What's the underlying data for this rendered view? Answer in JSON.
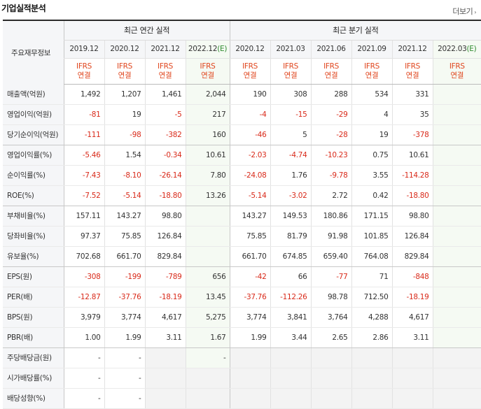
{
  "header": {
    "title": "기업실적분석",
    "more_label": "더보기",
    "more_arrow": "›"
  },
  "table": {
    "corner_label": "주요재무정보",
    "groups": {
      "annual": "최근 연간 실적",
      "quarterly": "최근 분기 실적"
    },
    "annual_periods": [
      "2019.12",
      "2020.12",
      "2021.12",
      "2022.12"
    ],
    "annual_estimate_mark": "(E)",
    "quarterly_periods": [
      "2020.12",
      "2021.03",
      "2021.06",
      "2021.09",
      "2021.12",
      "2022.03"
    ],
    "quarterly_estimate_mark": "(E)",
    "standard_line1": "IFRS",
    "standard_line2": "연결",
    "rows": [
      {
        "label": "매출액(억원)",
        "values": [
          "1,492",
          "1,207",
          "1,461",
          "2,044",
          "190",
          "308",
          "288",
          "534",
          "331",
          ""
        ]
      },
      {
        "label": "영업이익(억원)",
        "values": [
          "-81",
          "19",
          "-5",
          "217",
          "-4",
          "-15",
          "-29",
          "4",
          "35",
          ""
        ]
      },
      {
        "label": "당기순이익(억원)",
        "values": [
          "-111",
          "-98",
          "-382",
          "160",
          "-46",
          "5",
          "-28",
          "19",
          "-378",
          ""
        ]
      },
      {
        "label": "영업이익률(%)",
        "values": [
          "-5.46",
          "1.54",
          "-0.34",
          "10.61",
          "-2.03",
          "-4.74",
          "-10.23",
          "0.75",
          "10.61",
          ""
        ]
      },
      {
        "label": "순이익률(%)",
        "values": [
          "-7.43",
          "-8.10",
          "-26.14",
          "7.80",
          "-24.08",
          "1.76",
          "-9.78",
          "3.55",
          "-114.28",
          ""
        ]
      },
      {
        "label": "ROE(%)",
        "values": [
          "-7.52",
          "-5.14",
          "-18.80",
          "13.26",
          "-5.14",
          "-3.02",
          "2.72",
          "0.42",
          "-18.80",
          ""
        ]
      },
      {
        "label": "부채비율(%)",
        "values": [
          "157.11",
          "143.27",
          "98.80",
          "",
          "143.27",
          "149.53",
          "180.86",
          "171.15",
          "98.80",
          ""
        ]
      },
      {
        "label": "당좌비율(%)",
        "values": [
          "97.37",
          "75.85",
          "126.84",
          "",
          "75.85",
          "81.79",
          "91.98",
          "101.85",
          "126.84",
          ""
        ]
      },
      {
        "label": "유보율(%)",
        "values": [
          "702.68",
          "661.70",
          "829.84",
          "",
          "661.70",
          "674.85",
          "659.40",
          "764.08",
          "829.84",
          ""
        ]
      },
      {
        "label": "EPS(원)",
        "values": [
          "-308",
          "-199",
          "-789",
          "656",
          "-42",
          "66",
          "-77",
          "71",
          "-848",
          ""
        ]
      },
      {
        "label": "PER(배)",
        "values": [
          "-12.87",
          "-37.76",
          "-18.19",
          "13.45",
          "-37.76",
          "-112.26",
          "98.78",
          "712.50",
          "-18.19",
          ""
        ]
      },
      {
        "label": "BPS(원)",
        "values": [
          "3,979",
          "3,774",
          "4,617",
          "5,275",
          "3,774",
          "3,841",
          "3,764",
          "4,288",
          "4,617",
          ""
        ]
      },
      {
        "label": "PBR(배)",
        "values": [
          "1.00",
          "1.99",
          "3.11",
          "1.67",
          "1.99",
          "3.44",
          "2.65",
          "2.86",
          "3.11",
          ""
        ]
      },
      {
        "label": "주당배당금(원)",
        "values": [
          "-",
          "-",
          "",
          "-",
          "",
          "",
          "",
          "",
          "",
          ""
        ]
      },
      {
        "label": "시가배당률(%)",
        "values": [
          "-",
          "-",
          "",
          "",
          "",
          "",
          "",
          "",
          "",
          ""
        ]
      },
      {
        "label": "배당성향(%)",
        "values": [
          "-",
          "-",
          "",
          "",
          "",
          "",
          "",
          "",
          "",
          ""
        ]
      }
    ]
  },
  "colors": {
    "negative": "#d92a1a",
    "ifrs": "#e0461e",
    "estimate_mark": "#2e8b2e",
    "header_bg": "#f5f6f8",
    "estimate_bg": "#f5faf3"
  }
}
